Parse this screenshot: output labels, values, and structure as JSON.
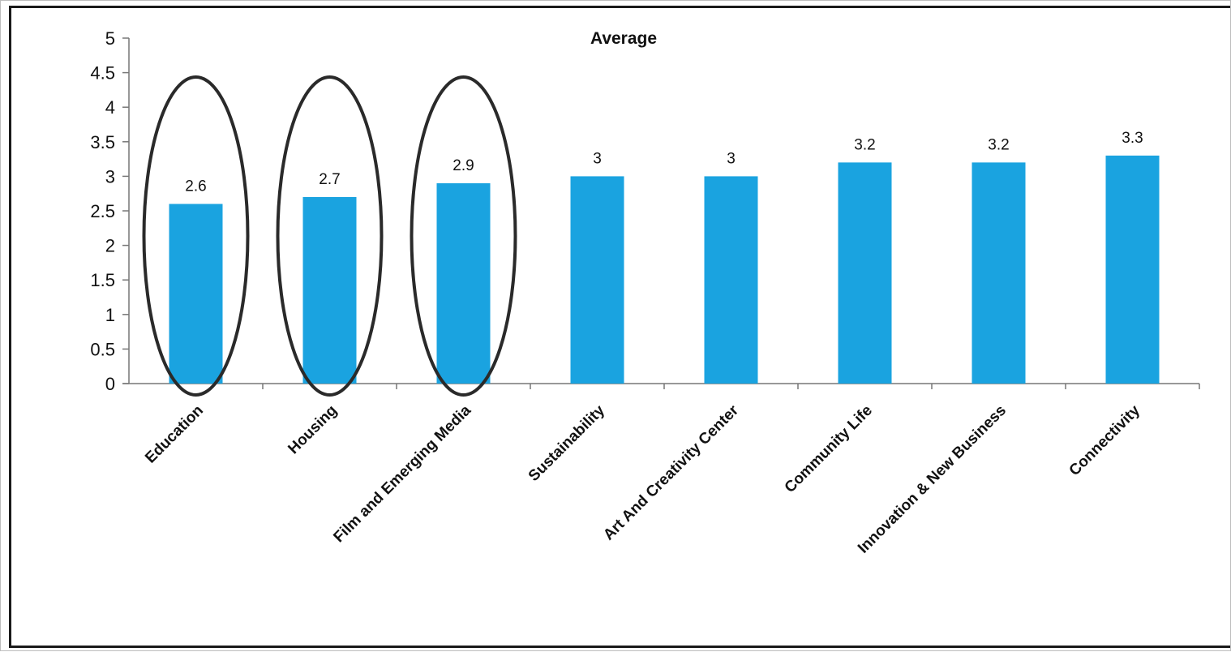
{
  "chart_data": {
    "type": "bar",
    "title": "Average",
    "categories": [
      "Education",
      "Housing",
      "Film and Emerging Media",
      "Sustainability",
      "Art And Creativity Center",
      "Community Life",
      "Innovation & New Business",
      "Connectivity"
    ],
    "values": [
      2.6,
      2.7,
      2.9,
      3,
      3,
      3.2,
      3.2,
      3.3
    ],
    "data_labels": [
      "2.6",
      "2.7",
      "2.9",
      "3",
      "3",
      "3.2",
      "3.2",
      "3.3"
    ],
    "ylim": [
      0,
      5
    ],
    "yticks": [
      "0",
      "0.5",
      "1",
      "1.5",
      "2",
      "2.5",
      "3",
      "3.5",
      "4",
      "4.5",
      "5"
    ],
    "bar_color": "#1aa3e0",
    "grid": false,
    "legend": "none",
    "annotations": {
      "circled_categories": [
        "Education",
        "Housing",
        "Film and Emerging Media"
      ],
      "circle_color": "#2a2a2a"
    }
  }
}
